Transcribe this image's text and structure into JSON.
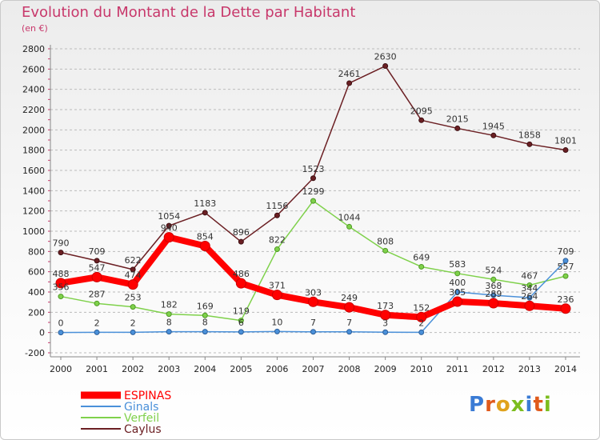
{
  "title": "Evolution du Montant de la Dette par Habitant",
  "subtitle": "(en €)",
  "logo": {
    "text": "Proxiti",
    "colors": [
      "#3a7bd5",
      "#e05a1c",
      "#e0a21c",
      "#7cbd1e",
      "#3a7bd5",
      "#e05a1c",
      "#7cbd1e"
    ]
  },
  "chart_data": {
    "type": "line",
    "x": [
      2000,
      2001,
      2002,
      2003,
      2004,
      2005,
      2006,
      2007,
      2008,
      2009,
      2010,
      2011,
      2012,
      2013,
      2014
    ],
    "ylim": [
      -200,
      2800
    ],
    "yticks": [
      -200,
      0,
      200,
      400,
      600,
      800,
      1000,
      1200,
      1400,
      1600,
      1800,
      2000,
      2200,
      2400,
      2600,
      2800
    ],
    "grid": "horizontal dashed",
    "legend": "bottom-left",
    "series": [
      {
        "name": "Caylus",
        "color": "#6b1f23",
        "width": 1.5,
        "values": [
          790,
          709,
          622,
          1054,
          1183,
          896,
          1156,
          1523,
          2461,
          2630,
          2095,
          2015,
          1945,
          1858,
          1801
        ],
        "labels": [
          "790",
          "709",
          "622",
          "1054",
          "1183",
          "896",
          "1156",
          "1523",
          "2461",
          "2630",
          "2095",
          "2015",
          "1945",
          "1858",
          "1801"
        ]
      },
      {
        "name": "Verfeil",
        "color": "#7fd14b",
        "width": 1.5,
        "values": [
          356,
          287,
          253,
          182,
          169,
          119,
          822,
          1299,
          1044,
          808,
          649,
          583,
          524,
          467,
          557
        ],
        "labels": [
          "356",
          "287",
          "253",
          "182",
          "169",
          "119",
          "822",
          "1299",
          "1044",
          "808",
          "649",
          "583",
          "524",
          "467",
          "557"
        ]
      },
      {
        "name": "Ginals",
        "color": "#4a90d9",
        "width": 1.5,
        "values": [
          0,
          2,
          2,
          8,
          8,
          6,
          10,
          7,
          7,
          3,
          2,
          400,
          368,
          344,
          709
        ],
        "labels": [
          "0",
          "2",
          "2",
          "8",
          "8",
          "6",
          "10",
          "7",
          "7",
          "3",
          "2",
          "400",
          "368",
          "344",
          "709"
        ]
      },
      {
        "name": "ESPINAS",
        "color": "#ff0000",
        "width": 8,
        "values": [
          488,
          547,
          474,
          940,
          854,
          486,
          371,
          303,
          249,
          173,
          152,
          305,
          289,
          264,
          236
        ],
        "labels": [
          "488",
          "547",
          "474",
          "940",
          "854",
          "486",
          "371",
          "303",
          "249",
          "173",
          "152",
          "305",
          "289",
          "264",
          "236"
        ]
      }
    ],
    "legend_order": [
      "ESPINAS",
      "Ginals",
      "Verfeil",
      "Caylus"
    ]
  }
}
